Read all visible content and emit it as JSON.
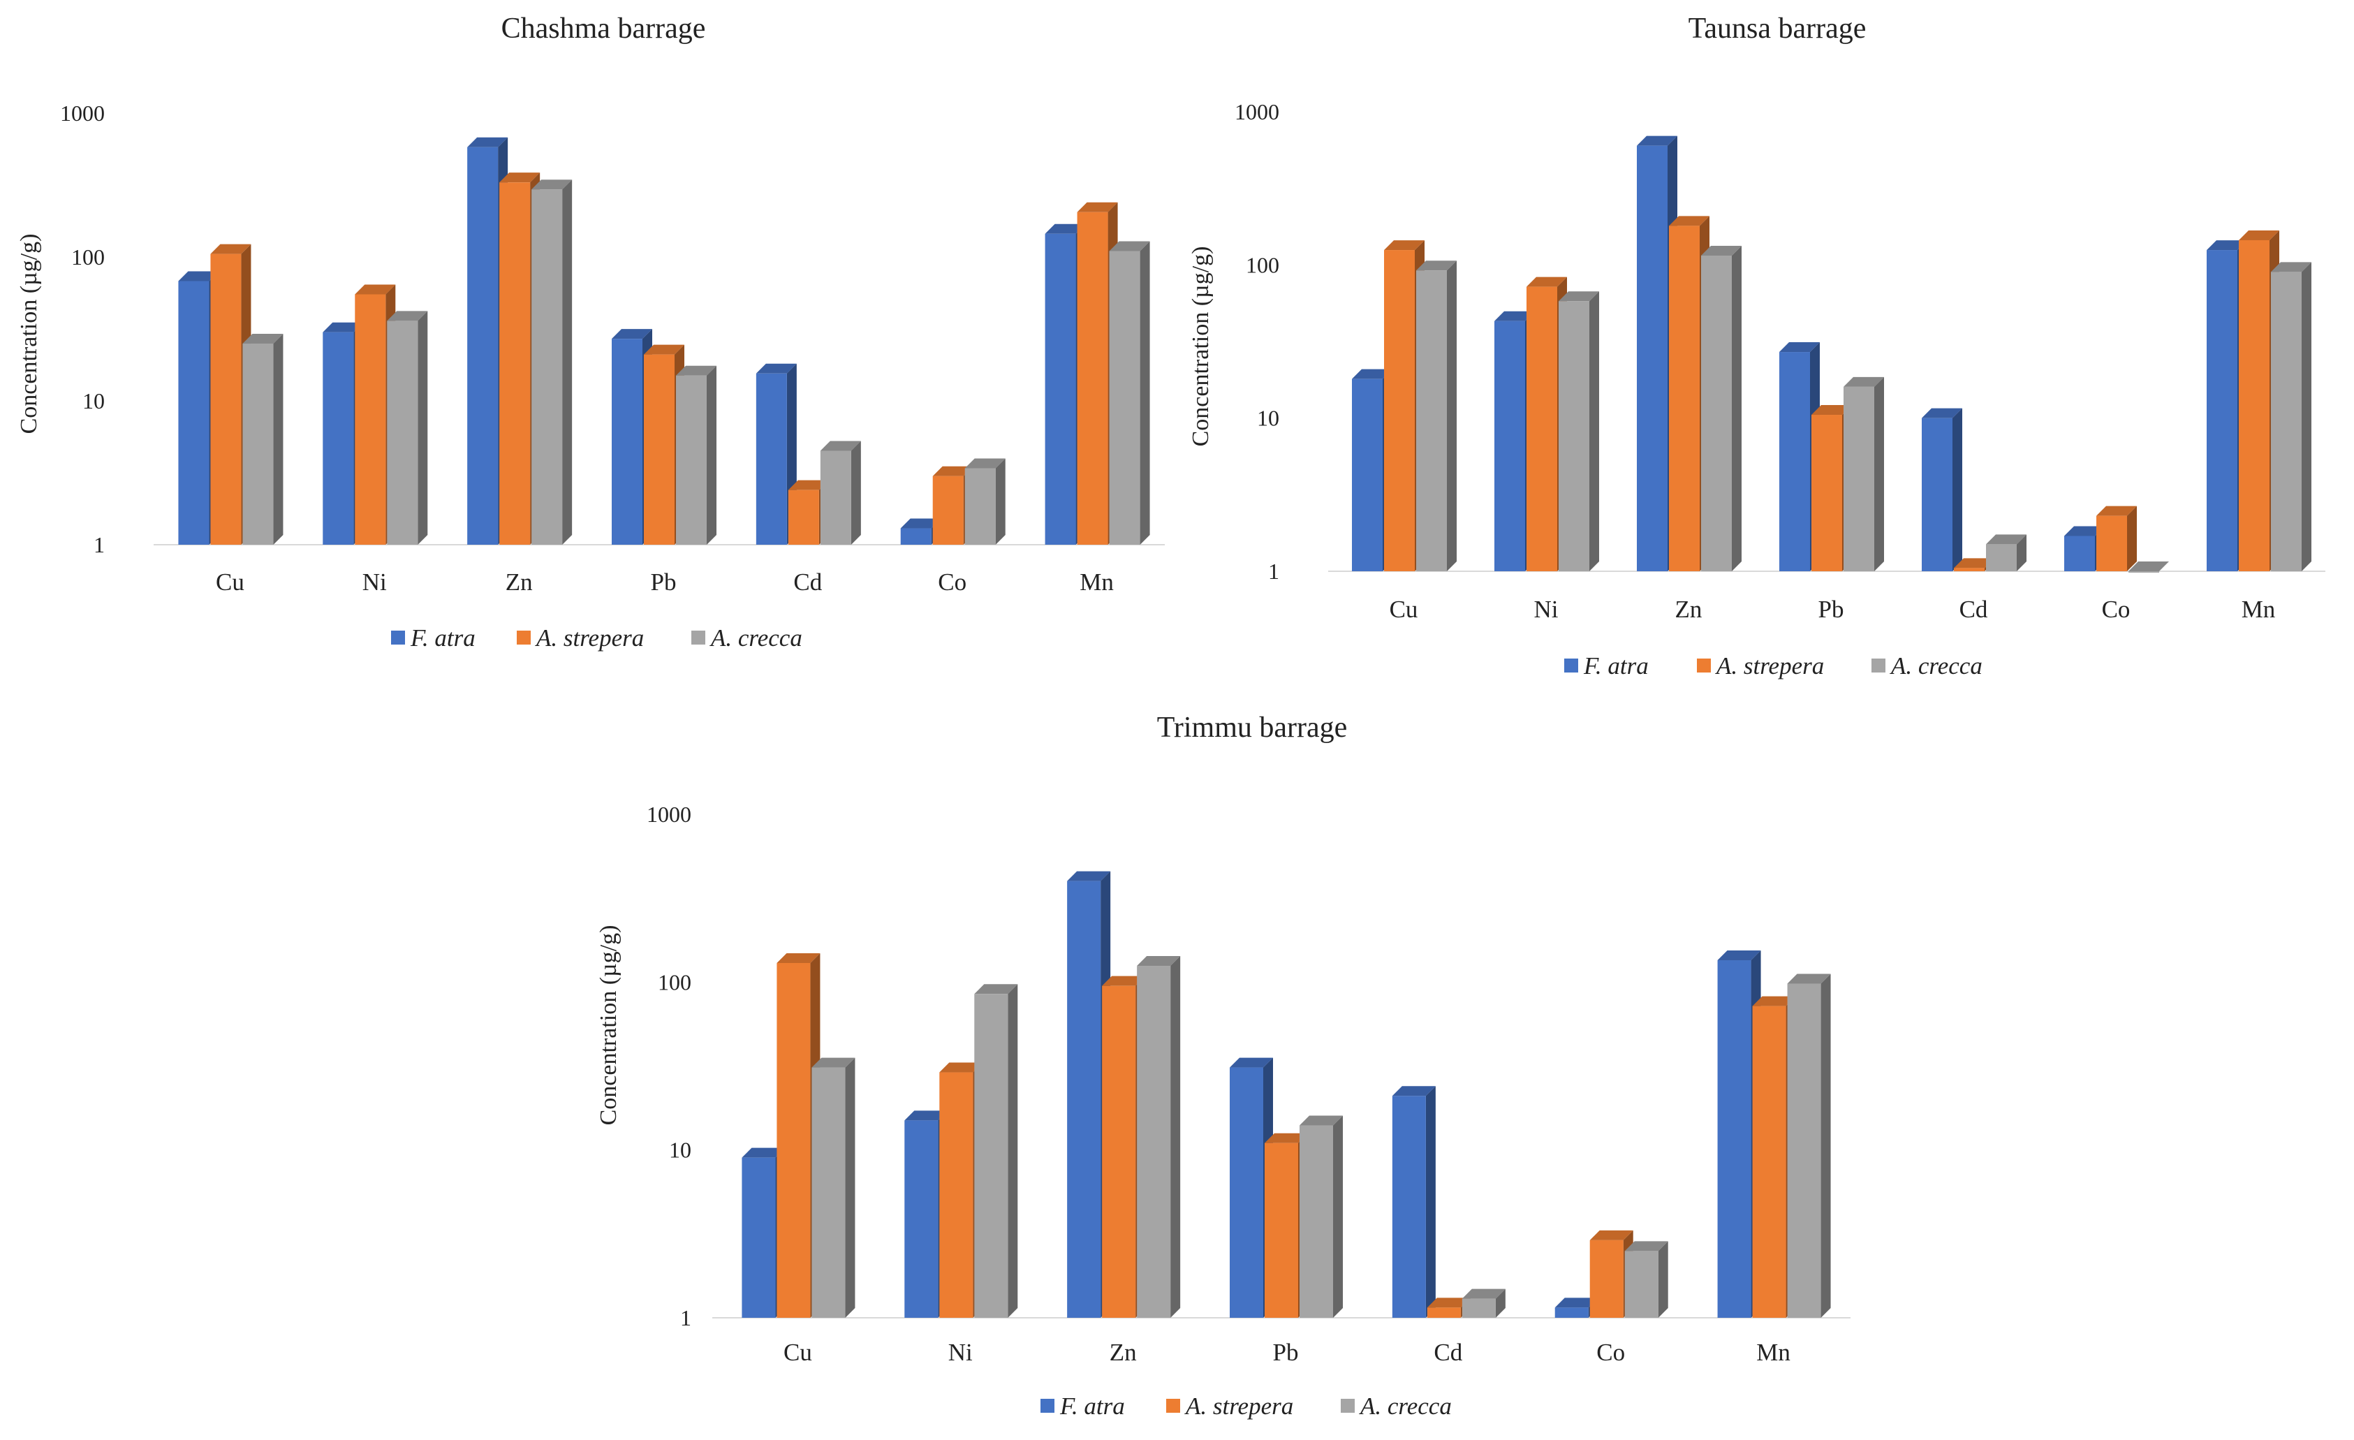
{
  "chart_data": [
    {
      "type": "bar",
      "title": "Chashma barrage",
      "ylabel": "Concentration (µg/g)",
      "xlabel": "",
      "yscale": "log",
      "ylim": [
        1,
        1000
      ],
      "yticks": [
        "1",
        "10",
        "100",
        "1000"
      ],
      "categories": [
        "Cu",
        "Ni",
        "Zn",
        "Pb",
        "Cd",
        "Co",
        "Mn"
      ],
      "series": [
        {
          "name": "F. atra",
          "color": "#4472C4",
          "values": [
            68,
            30,
            580,
            27,
            15.5,
            1.3,
            145
          ]
        },
        {
          "name": "A. strepera",
          "color": "#ED7D31",
          "values": [
            105,
            55,
            330,
            21,
            2.4,
            3.0,
            205
          ]
        },
        {
          "name": "A. crecca",
          "color": "#A5A5A5",
          "values": [
            25,
            36,
            295,
            15,
            4.5,
            3.4,
            110
          ]
        }
      ],
      "legend": "bottom"
    },
    {
      "type": "bar",
      "title": "Taunsa barrage",
      "ylabel": "Concentration (µg/g)",
      "xlabel": "",
      "yscale": "log",
      "ylim": [
        1,
        1000
      ],
      "yticks": [
        "1",
        "10",
        "100",
        "1000"
      ],
      "categories": [
        "Cu",
        "Ni",
        "Zn",
        "Pb",
        "Cd",
        "Co",
        "Mn"
      ],
      "series": [
        {
          "name": "F. atra",
          "color": "#4472C4",
          "values": [
            18,
            43,
            600,
            27,
            10,
            1.7,
            125
          ]
        },
        {
          "name": "A. strepera",
          "color": "#ED7D31",
          "values": [
            125,
            72,
            180,
            10.5,
            1.05,
            2.3,
            145
          ]
        },
        {
          "name": "A. crecca",
          "color": "#A5A5A5",
          "values": [
            92,
            58,
            115,
            16,
            1.5,
            1.0,
            90
          ]
        }
      ],
      "legend": "bottom"
    },
    {
      "type": "bar",
      "title": "Trimmu barrage",
      "ylabel": "Concentration (µg/g)",
      "xlabel": "",
      "yscale": "log",
      "ylim": [
        1,
        1000
      ],
      "yticks": [
        "1",
        "10",
        "100",
        "1000"
      ],
      "categories": [
        "Cu",
        "Ni",
        "Zn",
        "Pb",
        "Cd",
        "Co",
        "Mn"
      ],
      "series": [
        {
          "name": "F. atra",
          "color": "#4472C4",
          "values": [
            9,
            15,
            400,
            31,
            21,
            1.15,
            135
          ]
        },
        {
          "name": "A. strepera",
          "color": "#ED7D31",
          "values": [
            130,
            29,
            95,
            11,
            1.15,
            2.9,
            72
          ]
        },
        {
          "name": "A. crecca",
          "color": "#A5A5A5",
          "values": [
            31,
            85,
            125,
            14,
            1.3,
            2.5,
            98
          ]
        }
      ],
      "legend": "bottom"
    }
  ]
}
